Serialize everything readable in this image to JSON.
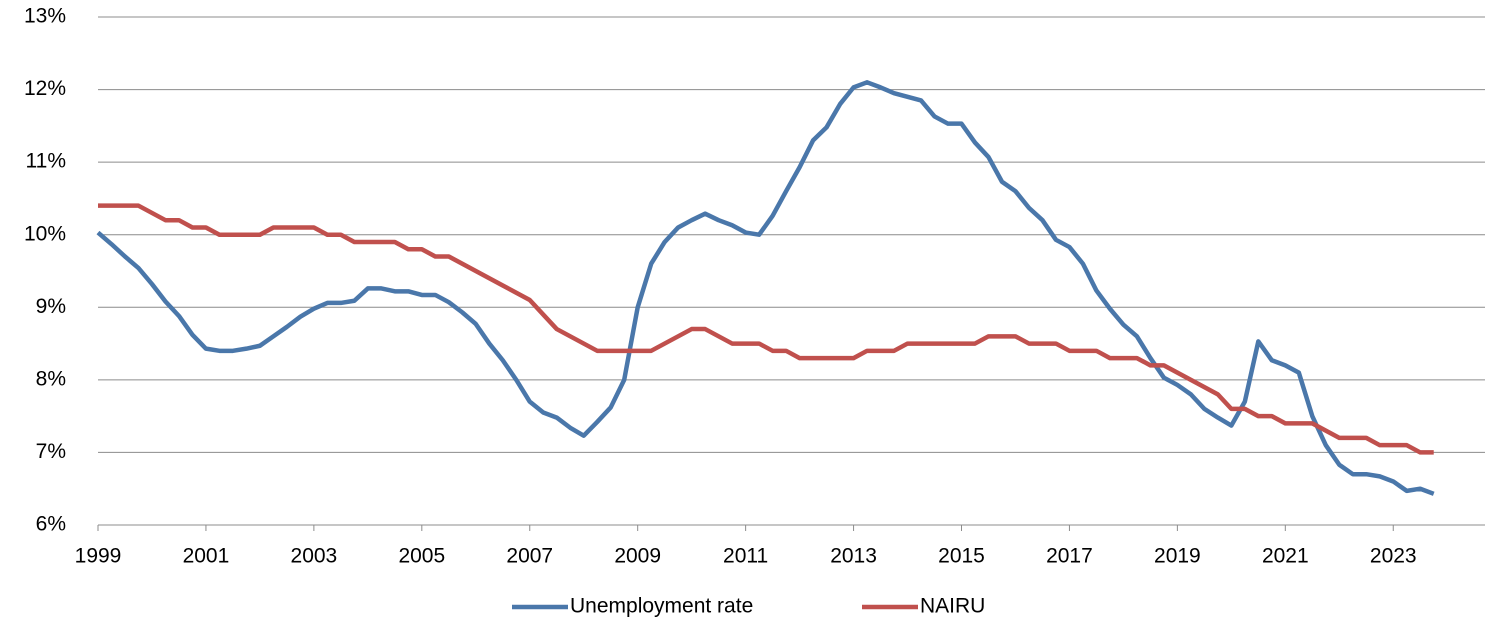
{
  "chart_data": {
    "type": "line",
    "x": [
      1999,
      1999.25,
      1999.5,
      1999.75,
      2000,
      2000.25,
      2000.5,
      2000.75,
      2001,
      2001.25,
      2001.5,
      2001.75,
      2002,
      2002.25,
      2002.5,
      2002.75,
      2003,
      2003.25,
      2003.5,
      2003.75,
      2004,
      2004.25,
      2004.5,
      2004.75,
      2005,
      2005.25,
      2005.5,
      2005.75,
      2006,
      2006.25,
      2006.5,
      2006.75,
      2007,
      2007.25,
      2007.5,
      2007.75,
      2008,
      2008.25,
      2008.5,
      2008.75,
      2009,
      2009.25,
      2009.5,
      2009.75,
      2010,
      2010.25,
      2010.5,
      2010.75,
      2011,
      2011.25,
      2011.5,
      2011.75,
      2012,
      2012.25,
      2012.5,
      2012.75,
      2013,
      2013.25,
      2013.5,
      2013.75,
      2014,
      2014.25,
      2014.5,
      2014.75,
      2015,
      2015.25,
      2015.5,
      2015.75,
      2016,
      2016.25,
      2016.5,
      2016.75,
      2017,
      2017.25,
      2017.5,
      2017.75,
      2018,
      2018.25,
      2018.5,
      2018.75,
      2019,
      2019.25,
      2019.5,
      2019.75,
      2020,
      2020.25,
      2020.5,
      2020.75,
      2021,
      2021.25,
      2021.5,
      2021.75,
      2022,
      2022.25,
      2022.5,
      2022.75,
      2023,
      2023.25,
      2023.5,
      2023.75
    ],
    "series": [
      {
        "name": "Unemployment rate",
        "color": "#4a77aa",
        "values": [
          10.03,
          9.87,
          9.7,
          9.54,
          9.32,
          9.08,
          8.88,
          8.62,
          8.43,
          8.4,
          8.4,
          8.43,
          8.47,
          8.6,
          8.73,
          8.87,
          8.98,
          9.06,
          9.06,
          9.09,
          9.26,
          9.26,
          9.22,
          9.22,
          9.17,
          9.17,
          9.07,
          8.93,
          8.77,
          8.5,
          8.27,
          8.0,
          7.7,
          7.55,
          7.48,
          7.34,
          7.23,
          7.42,
          7.62,
          8.0,
          9.0,
          9.6,
          9.9,
          10.1,
          10.2,
          10.29,
          10.2,
          10.13,
          10.03,
          10.0,
          10.26,
          10.6,
          10.93,
          11.3,
          11.48,
          11.8,
          12.03,
          12.1,
          12.03,
          11.95,
          11.9,
          11.85,
          11.63,
          11.53,
          11.53,
          11.27,
          11.07,
          10.73,
          10.6,
          10.37,
          10.2,
          9.93,
          9.83,
          9.6,
          9.23,
          8.98,
          8.76,
          8.6,
          8.3,
          8.03,
          7.93,
          7.8,
          7.6,
          7.48,
          7.37,
          7.7,
          8.53,
          8.27,
          8.2,
          8.1,
          7.5,
          7.1,
          6.83,
          6.7,
          6.7,
          6.67,
          6.6,
          6.47,
          6.5,
          6.43
        ]
      },
      {
        "name": "NAIRU",
        "color": "#c0504d",
        "values": [
          10.4,
          10.4,
          10.4,
          10.4,
          10.3,
          10.2,
          10.2,
          10.1,
          10.1,
          10.0,
          10.0,
          10.0,
          10.0,
          10.1,
          10.1,
          10.1,
          10.1,
          10.0,
          10.0,
          9.9,
          9.9,
          9.9,
          9.9,
          9.8,
          9.8,
          9.7,
          9.7,
          9.6,
          9.5,
          9.4,
          9.3,
          9.2,
          9.1,
          8.9,
          8.7,
          8.6,
          8.5,
          8.4,
          8.4,
          8.4,
          8.4,
          8.4,
          8.5,
          8.6,
          8.7,
          8.7,
          8.6,
          8.5,
          8.5,
          8.5,
          8.4,
          8.4,
          8.3,
          8.3,
          8.3,
          8.3,
          8.3,
          8.4,
          8.4,
          8.4,
          8.5,
          8.5,
          8.5,
          8.5,
          8.5,
          8.5,
          8.6,
          8.6,
          8.6,
          8.5,
          8.5,
          8.5,
          8.4,
          8.4,
          8.4,
          8.3,
          8.3,
          8.3,
          8.2,
          8.2,
          8.1,
          8.0,
          7.9,
          7.8,
          7.6,
          7.6,
          7.5,
          7.5,
          7.4,
          7.4,
          7.4,
          7.3,
          7.2,
          7.2,
          7.2,
          7.1,
          7.1,
          7.1,
          7.0,
          7.0
        ]
      }
    ],
    "xlim": [
      1999,
      2024.7
    ],
    "xticks": [
      1999,
      2001,
      2003,
      2005,
      2007,
      2009,
      2011,
      2013,
      2015,
      2017,
      2019,
      2021,
      2023
    ],
    "ylim": [
      6,
      13
    ],
    "yticks": [
      {
        "value": 6,
        "label": "6%"
      },
      {
        "value": 7,
        "label": "7%"
      },
      {
        "value": 8,
        "label": "8%"
      },
      {
        "value": 9,
        "label": "9%"
      },
      {
        "value": 10,
        "label": "10%"
      },
      {
        "value": 11,
        "label": "11%"
      },
      {
        "value": 12,
        "label": "12%"
      },
      {
        "value": 13,
        "label": "13%"
      }
    ],
    "grid": true,
    "legend": "bottom"
  }
}
